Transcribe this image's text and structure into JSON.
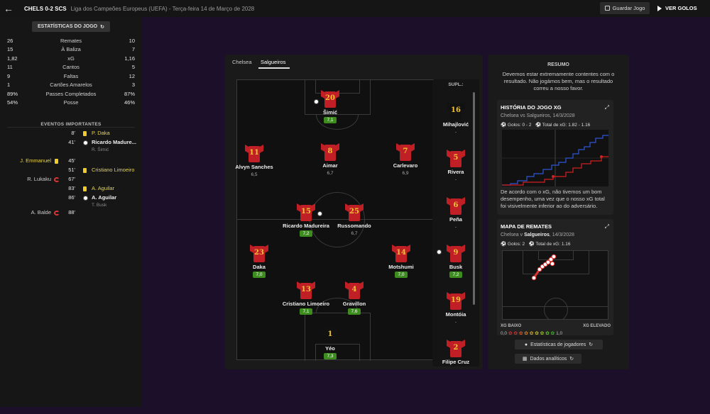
{
  "header": {
    "score": "CHELS 0-2 SCS",
    "competition": "Liga dos Campeões Europeus (UEFA) - Terça-feira 14 de Março de 2028",
    "save_label": "Guardar Jogo",
    "goals_label": "VER GOLOS"
  },
  "stats": {
    "button_label": "ESTATÍSTICAS DO JOGO",
    "rows": [
      {
        "home": "26",
        "label": "Remates",
        "away": "10"
      },
      {
        "home": "15",
        "label": "À Baliza",
        "away": "7"
      },
      {
        "home": "1,82",
        "label": "xG",
        "away": "1,16"
      },
      {
        "home": "11",
        "label": "Cantos",
        "away": "5"
      },
      {
        "home": "9",
        "label": "Faltas",
        "away": "12"
      },
      {
        "home": "1",
        "label": "Cartões Amarelos",
        "away": "3"
      },
      {
        "home": "89%",
        "label": "Passes Completados",
        "away": "87%"
      },
      {
        "home": "54%",
        "label": "Posse",
        "away": "46%"
      }
    ]
  },
  "events": {
    "title": "EVENTOS IMPORTANTES",
    "items": [
      {
        "min": "8'",
        "away": "P. Daka",
        "type": "yellow"
      },
      {
        "min": "41'",
        "away": "Ricardo Madure...",
        "sub": "R. Šimić",
        "type": "goal"
      },
      {
        "min": "45'",
        "home": "J. Emmanuel",
        "type": "yellow"
      },
      {
        "min": "51'",
        "away": "Cristiano Limoeiro",
        "type": "yellow"
      },
      {
        "min": "67'",
        "home": "R. Lukaku",
        "type": "sub"
      },
      {
        "min": "83'",
        "away": "A. Aguilar",
        "type": "yellow"
      },
      {
        "min": "86'",
        "away": "A. Aguilar",
        "sub": "T. Busk",
        "type": "goal"
      },
      {
        "min": "88'",
        "home": "A. Balde",
        "type": "sub"
      }
    ]
  },
  "tabs": [
    "Chelsea",
    "Salgueiros"
  ],
  "lineup": [
    {
      "num": "20",
      "name": "Šimić",
      "rating": "7,1",
      "green": true
    },
    {
      "num": "11",
      "name": "Alvyn Sanches",
      "rating": "6,5",
      "green": false
    },
    {
      "num": "8",
      "name": "Aimar",
      "rating": "6,7",
      "green": false
    },
    {
      "num": "7",
      "name": "Carlevaro",
      "rating": "6,9",
      "green": false
    },
    {
      "num": "15",
      "name": "Ricardo Madureira",
      "rating": "7,2",
      "green": true
    },
    {
      "num": "25",
      "name": "Russomando",
      "rating": "6,7",
      "green": false
    },
    {
      "num": "23",
      "name": "Daka",
      "rating": "7,0",
      "green": true
    },
    {
      "num": "14",
      "name": "Motshumi",
      "rating": "7,0",
      "green": true
    },
    {
      "num": "13",
      "name": "Cristiano Limoeiro",
      "rating": "7,1",
      "green": true
    },
    {
      "num": "4",
      "name": "Gravillon",
      "rating": "7,6",
      "green": true
    },
    {
      "num": "1",
      "name": "Yéo",
      "rating": "7,3",
      "green": true
    }
  ],
  "bench": {
    "title": "SUPL.:",
    "players": [
      {
        "num": "16",
        "name": "Mihajlović",
        "rating": "-"
      },
      {
        "num": "5",
        "name": "Rivera",
        "rating": "-"
      },
      {
        "num": "6",
        "name": "Peña",
        "rating": "-"
      },
      {
        "num": "9",
        "name": "Busk",
        "rating": "7,2",
        "green": true
      },
      {
        "num": "19",
        "name": "Montóia",
        "rating": "-"
      },
      {
        "num": "2",
        "name": "Filipe Cruz",
        "rating": ""
      }
    ]
  },
  "summary": {
    "title": "RESUMO",
    "text": "Devemos estar extremamente contentes com o resultado. Não jogámos bem, mas o resultado correu a nosso favor."
  },
  "xg_story": {
    "title": "HISTÓRIA DO JOGO XG",
    "subtitle": "Chelsea vs Salgueiros, 14/3/2028",
    "goals": "Golos: 0 - 2",
    "xg_total": "Total de xG: 1.82 - 1.16",
    "description": "De acordo com o xG, não tivemos um bom desempenho, uma vez que o nosso xG total foi visivelmente inferior ao do adversário.",
    "colors": {
      "home": "#2f55d6",
      "away": "#d42020"
    }
  },
  "shot_map": {
    "title": "MAPA DE REMATES",
    "subtitle_pre": "Chelsea v ",
    "subtitle_team": "Salgueiros",
    "subtitle_post": ", 14/3/2028",
    "goals": "Golos: 2",
    "xg_total": "Total de xG: 1.16",
    "low_label": "XG BAIXO",
    "high_label": "XG ELEVADO",
    "scale_min": "0,0",
    "scale_max": "1,0"
  },
  "buttons": {
    "player_stats": "Estatísticas de jogadores",
    "analytics": "Dados analíticos"
  }
}
